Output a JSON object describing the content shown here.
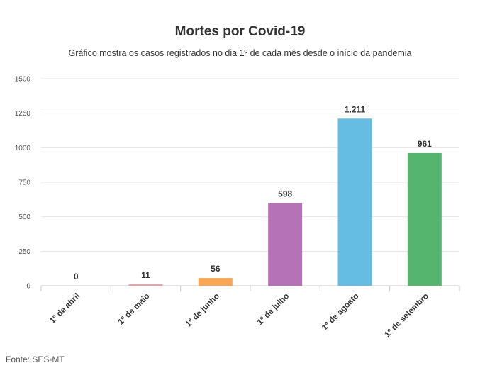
{
  "chart_data": {
    "type": "bar",
    "title": "Mortes por Covid-19",
    "subtitle": "Gráfico mostra os casos registrados no dia 1º de cada mês desde o início da pandemia",
    "categories": [
      "1º de abril",
      "1º de maio",
      "1º de junho",
      "1º de julho",
      "1º de agosto",
      "1º de setembro"
    ],
    "values": [
      0,
      11,
      56,
      598,
      1211,
      961
    ],
    "data_labels": [
      "0",
      "11",
      "56",
      "598",
      "1.211",
      "961"
    ],
    "colors": [
      "#e8a3a8",
      "#e8a3a8",
      "#f8a654",
      "#b672b6",
      "#66bde3",
      "#55b46e"
    ],
    "ylim": [
      0,
      1500
    ],
    "yticks": [
      0,
      250,
      500,
      750,
      1000,
      1250,
      1500
    ],
    "grid": true,
    "xlabel": "",
    "ylabel": ""
  },
  "source": "Fonte: SES-MT"
}
